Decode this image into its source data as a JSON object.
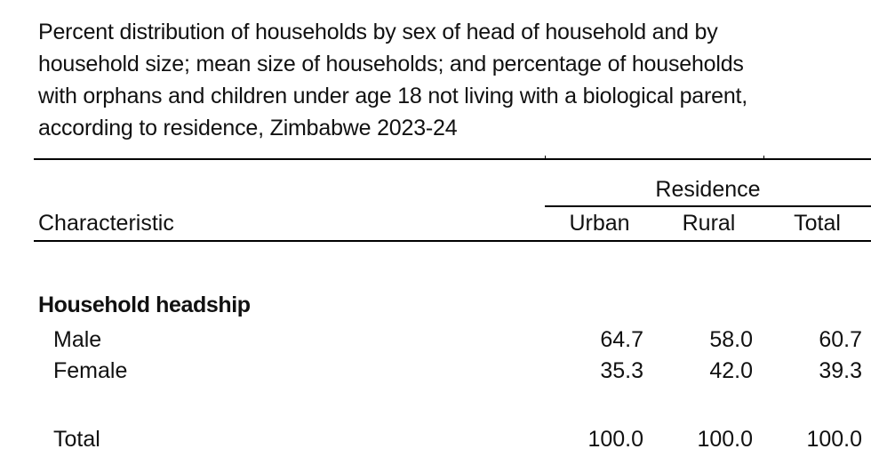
{
  "title_lines": [
    "Percent distribution of households by sex of head of household and by",
    "household size; mean size of households; and percentage of households",
    "with orphans and children under age 18 not living with a biological parent,",
    "according to residence, Zimbabwe 2023-24"
  ],
  "table": {
    "header": {
      "residence": "Residence",
      "characteristic": "Characteristic",
      "urban": "Urban",
      "rural": "Rural",
      "total": "Total"
    },
    "section_title": "Household headship",
    "rows": [
      {
        "label": "Male",
        "urban": "64.7",
        "rural": "58.0",
        "total": "60.7"
      },
      {
        "label": "Female",
        "urban": "35.3",
        "rural": "42.0",
        "total": "39.3"
      },
      {
        "label": "Total",
        "urban": "100.0",
        "rural": "100.0",
        "total": "100.0"
      }
    ]
  }
}
